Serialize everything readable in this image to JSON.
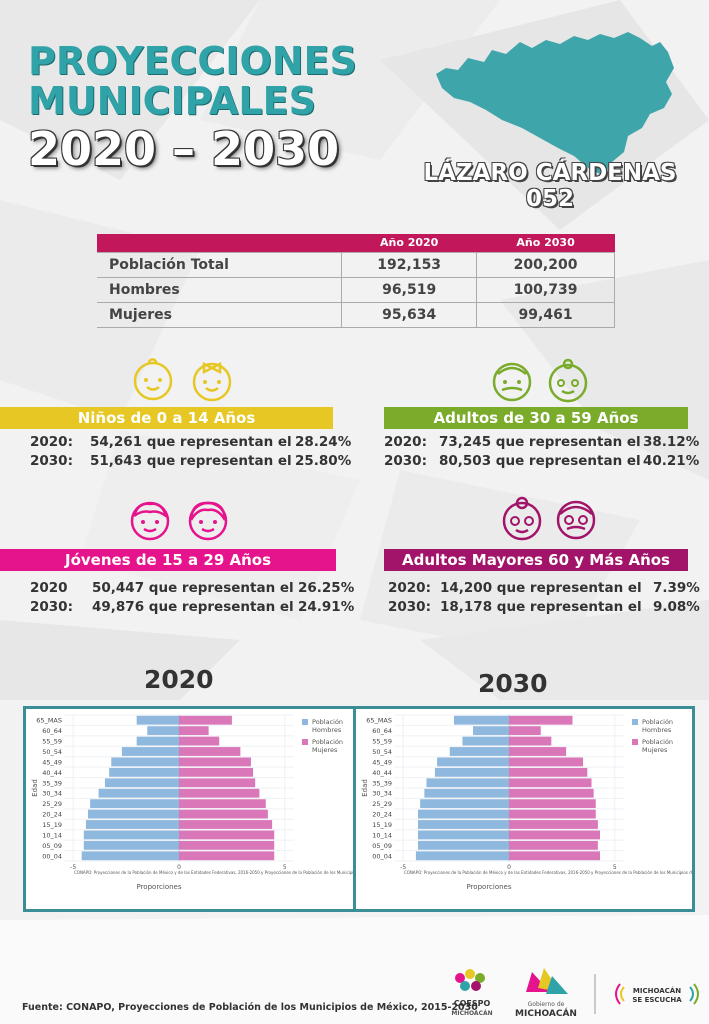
{
  "title": {
    "line1": "PROYECCIONES",
    "line2": "MUNICIPALES",
    "line3": "2020 – 2030"
  },
  "municipality": {
    "name": "LÁZARO CÁRDENAS",
    "code": "052"
  },
  "table": {
    "headers": [
      "",
      "Año 2020",
      "Año 2030"
    ],
    "rows": [
      {
        "label": "Población Total",
        "y2020": "192,153",
        "y2030": "200,200"
      },
      {
        "label": "Hombres",
        "y2020": "96,519",
        "y2030": "100,739"
      },
      {
        "label": "Mujeres",
        "y2020": "95,634",
        "y2030": "99,461"
      }
    ]
  },
  "groups": {
    "ninos": {
      "title": "Niños de 0 a 14 Años",
      "rows": [
        {
          "year": "2020:",
          "text": "54,261 que representan el",
          "pct": "28.24%"
        },
        {
          "year": "2030:",
          "text": "51,643 que representan el",
          "pct": "25.80%"
        }
      ]
    },
    "adultos": {
      "title": "Adultos de 30 a 59 Años",
      "rows": [
        {
          "year": "2020:",
          "text": "73,245 que representan el",
          "pct": "38.12%"
        },
        {
          "year": "2030:",
          "text": "80,503 que representan el",
          "pct": "40.21%"
        }
      ]
    },
    "jovenes": {
      "title": "Jóvenes de 15 a 29 Años",
      "rows": [
        {
          "year": "2020",
          "text": "50,447 que representan el",
          "pct": "26.25%"
        },
        {
          "year": "2030:",
          "text": "49,876 que representan el",
          "pct": "24.91%"
        }
      ]
    },
    "mayores": {
      "title": "Adultos Mayores  60 y Más Años",
      "rows": [
        {
          "year": "2020:",
          "text": "14,200 que representan el",
          "pct": "7.39%"
        },
        {
          "year": "2030:",
          "text": "18,178 que representan el",
          "pct": "9.08%"
        }
      ]
    }
  },
  "pyramid_titles": {
    "left": "2020",
    "right": "2030"
  },
  "chart_data": [
    {
      "type": "bar",
      "orientation": "horizontal-pyramid",
      "title": "2020",
      "xlabel": "Proporciones",
      "ylabel": "Edad",
      "xlim": [
        -5,
        5
      ],
      "x_ticks": [
        "-5",
        "0",
        "5"
      ],
      "categories": [
        "00_04",
        "05_09",
        "10_14",
        "15_19",
        "20_24",
        "25_29",
        "30_34",
        "35_39",
        "40_44",
        "45_49",
        "50_54",
        "55_59",
        "60_64",
        "65_MAS"
      ],
      "series": [
        {
          "name": "Población Hombres",
          "color": "#8fb8de",
          "values": [
            -4.6,
            -4.5,
            -4.5,
            -4.4,
            -4.3,
            -4.2,
            -3.8,
            -3.5,
            -3.3,
            -3.2,
            -2.7,
            -2.0,
            -1.5,
            -2.0
          ]
        },
        {
          "name": "Población Mujeres",
          "color": "#d977b8",
          "values": [
            4.5,
            4.5,
            4.5,
            4.4,
            4.2,
            4.1,
            3.8,
            3.6,
            3.5,
            3.4,
            2.9,
            1.9,
            1.4,
            2.5
          ]
        }
      ],
      "legend": "top-right",
      "note": "CONAPO: Proyecciones de la Población de México y de las Entidades Federativas, 2016-2050 y Proyecciones de la Población de los Municipios de Méx"
    },
    {
      "type": "bar",
      "orientation": "horizontal-pyramid",
      "title": "2030",
      "xlabel": "Proporciones",
      "ylabel": "Edad",
      "xlim": [
        -5,
        5
      ],
      "x_ticks": [
        "-5",
        "0",
        "5"
      ],
      "categories": [
        "00_04",
        "05_09",
        "10_14",
        "15_19",
        "20_24",
        "25_29",
        "30_34",
        "35_39",
        "40_44",
        "45_49",
        "50_54",
        "55_59",
        "60_64",
        "65_MAS"
      ],
      "series": [
        {
          "name": "Población Hombres",
          "color": "#8fb8de",
          "values": [
            -4.4,
            -4.3,
            -4.3,
            -4.3,
            -4.3,
            -4.2,
            -4.0,
            -3.9,
            -3.5,
            -3.4,
            -2.8,
            -2.2,
            -1.7,
            -2.6
          ]
        },
        {
          "name": "Población Mujeres",
          "color": "#d977b8",
          "values": [
            4.3,
            4.2,
            4.3,
            4.2,
            4.1,
            4.1,
            4.0,
            3.9,
            3.7,
            3.5,
            2.7,
            2.0,
            1.5,
            3.0
          ]
        }
      ],
      "legend": "top-right",
      "note": "CONAPO: Proyecciones de la Población de México y de las Entidades Federativas, 2016-2050 y Proyecciones de la Población de los Municipios de Méx"
    }
  ],
  "source": "Fuente: CONAPO, Proyecciones de Población de los Municipios de México, 2015-2030",
  "logos": {
    "coespo": {
      "line1": "COESPO",
      "line2": "MICHOACÁN"
    },
    "gobierno": {
      "line1": "Gobierno de",
      "line2": "MICHOACÁN"
    },
    "escucha": {
      "line1": "MICHOACÁN",
      "line2": "SE ESCUCHA"
    }
  },
  "colors": {
    "teal": "#2fa3a8",
    "magenta": "#c2185b",
    "yellow": "#e6c723",
    "green": "#7aab2a",
    "pink": "#e5138c",
    "purple": "#a1146a",
    "male_bar": "#8fb8de",
    "female_bar": "#d977b8"
  },
  "icons": [
    "baby-boy-icon",
    "baby-girl-icon",
    "grandpa-icon",
    "grandma-icon",
    "boy-icon",
    "girl-icon",
    "old-woman-icon",
    "old-man-icon",
    "michoacan-map-icon"
  ]
}
